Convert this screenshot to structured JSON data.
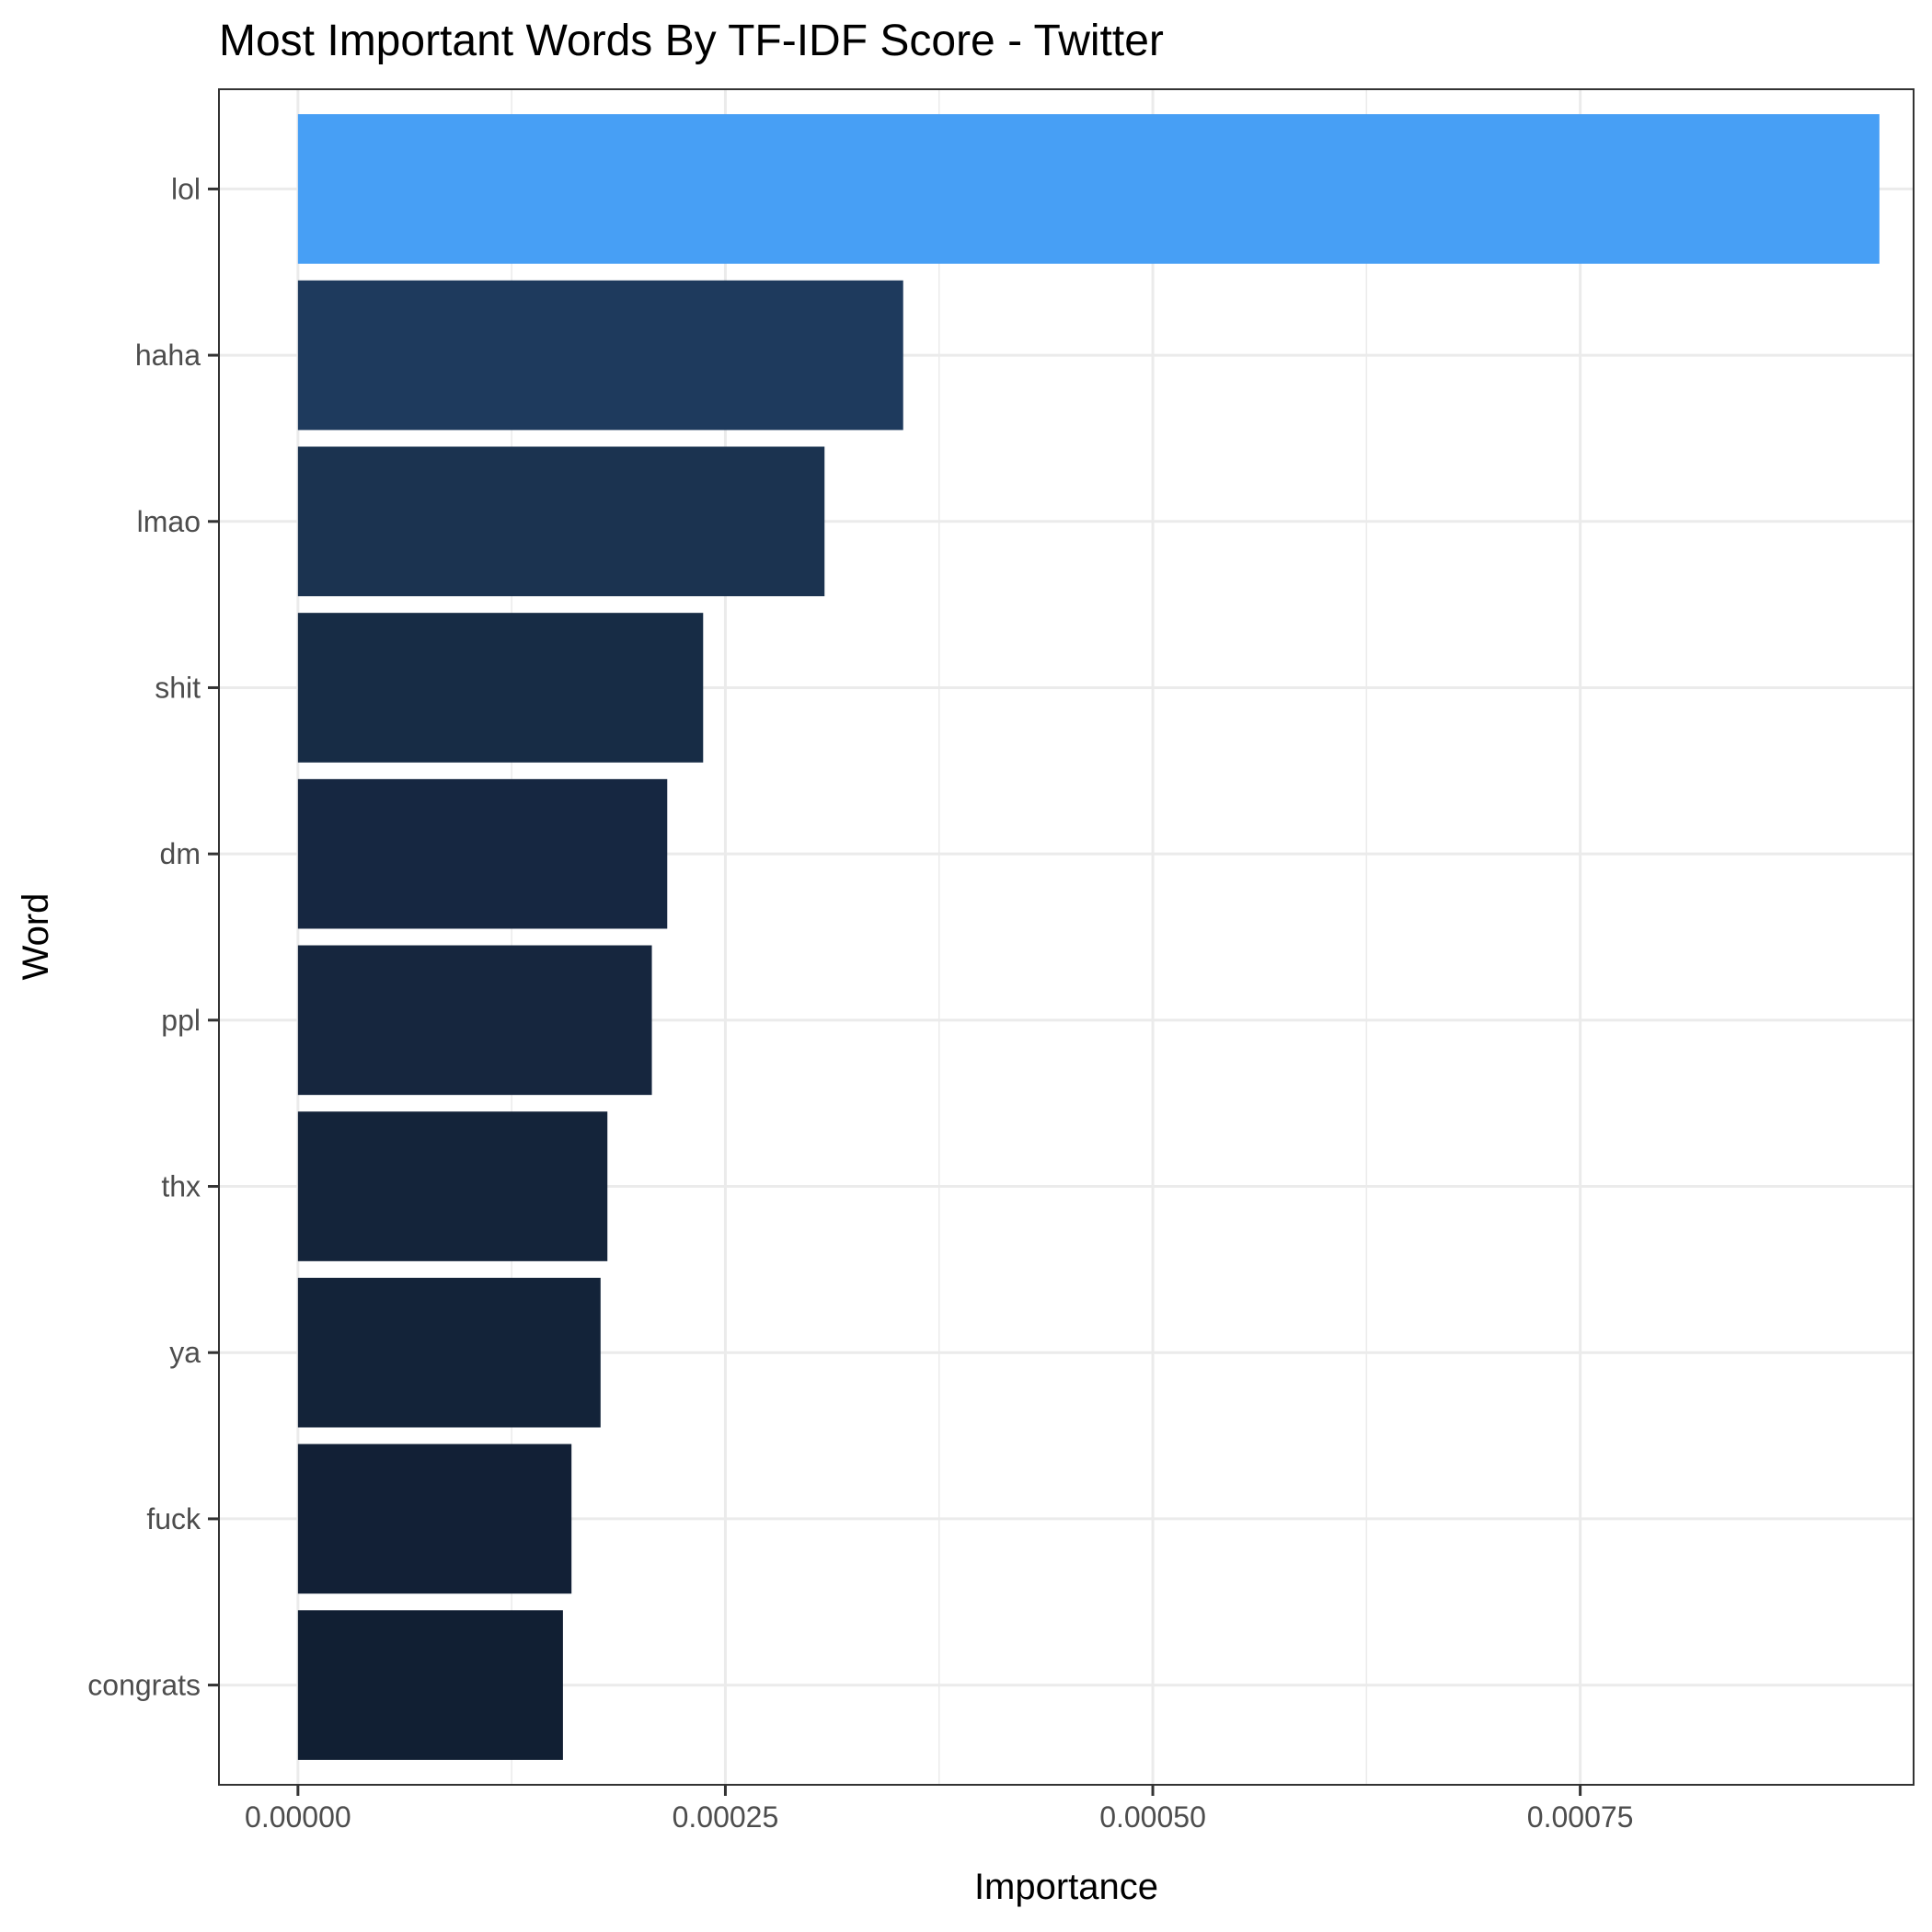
{
  "chart_data": {
    "type": "bar",
    "orientation": "horizontal",
    "title": "Most Important Words By TF-IDF Score - Twitter",
    "xlabel": "Importance",
    "ylabel": "Word",
    "categories": [
      "lol",
      "haha",
      "lmao",
      "shit",
      "dm",
      "ppl",
      "thx",
      "ya",
      "fuck",
      "congrats"
    ],
    "values": [
      0.000925,
      0.000354,
      0.000308,
      0.000237,
      0.000216,
      0.000207,
      0.000181,
      0.000177,
      0.00016,
      0.000155
    ],
    "colors": [
      "#479ff5",
      "#1e3a5d",
      "#1b3350",
      "#172c45",
      "#162741",
      "#16263e",
      "#14243a",
      "#132339",
      "#122036",
      "#111f33"
    ],
    "xlim": [
      -4.62e-05,
      0.000945
    ],
    "xticks": [
      0,
      0.00025,
      0.0005,
      0.00075
    ],
    "xtick_labels": [
      "0.00000",
      "0.00025",
      "0.00050",
      "0.00075"
    ],
    "grid": true,
    "legend": "none",
    "background": "#ffffff",
    "grid_color": "#ebebeb",
    "panel_border_color": "#333333"
  }
}
